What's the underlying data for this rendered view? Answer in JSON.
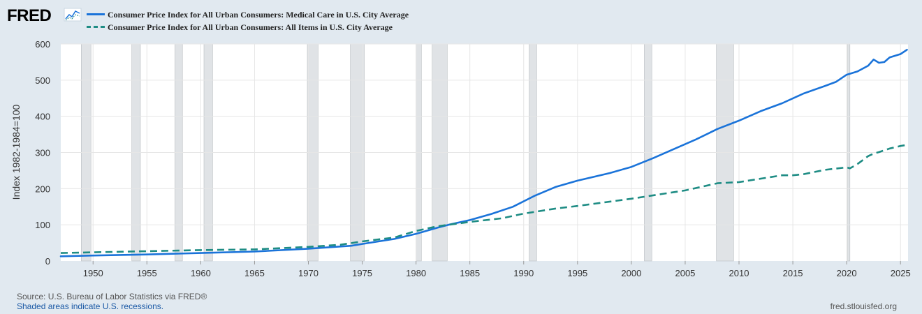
{
  "header": {
    "logo_text": "FRED",
    "logo_icon": "line-chart-icon"
  },
  "footer": {
    "source": "Source: U.S. Bureau of Labor Statistics via FRED®",
    "recession_note": "Shaded areas indicate U.S. recessions.",
    "site": "fred.stlouisfed.org"
  },
  "colors": {
    "background": "#e1e9f0",
    "plot_background": "#ffffff",
    "medical": "#1a73d9",
    "all_items": "#1e8c84",
    "recession": "#e0e3e6",
    "grid": "#e6e6e6"
  },
  "chart_data": {
    "type": "line",
    "title": "",
    "xlabel": "",
    "ylabel": "Index 1982-1984=100",
    "xlim": [
      1947.0,
      2025.7
    ],
    "ylim": [
      0,
      600
    ],
    "x_ticks": [
      1950,
      1955,
      1960,
      1965,
      1970,
      1975,
      1980,
      1985,
      1990,
      1995,
      2000,
      2005,
      2010,
      2015,
      2020,
      2025
    ],
    "y_ticks": [
      0,
      100,
      200,
      300,
      400,
      500,
      600
    ],
    "grid": true,
    "legend": "top-left",
    "recessions": [
      [
        1948.9,
        1949.8
      ],
      [
        1953.6,
        1954.4
      ],
      [
        1957.6,
        1958.3
      ],
      [
        1960.3,
        1961.1
      ],
      [
        1969.9,
        1970.9
      ],
      [
        1973.9,
        1975.2
      ],
      [
        1980.0,
        1980.5
      ],
      [
        1981.5,
        1982.9
      ],
      [
        1990.5,
        1991.2
      ],
      [
        2001.2,
        2001.9
      ],
      [
        2007.9,
        2009.5
      ],
      [
        2020.1,
        2020.3
      ]
    ],
    "series": [
      {
        "name": "Consumer Price Index for All Urban Consumers: Medical Care in U.S. City Average",
        "style": "solid",
        "x": [
          1947,
          1950,
          1955,
          1960,
          1965,
          1970,
          1974,
          1975,
          1978,
          1980,
          1982,
          1983,
          1985,
          1987,
          1989,
          1991,
          1993,
          1995,
          1998,
          2000,
          2002,
          2004,
          2006,
          2008,
          2010,
          2012,
          2014,
          2016,
          2018,
          2019,
          2020,
          2021,
          2022,
          2022.5,
          2023,
          2023.5,
          2024,
          2025,
          2025.6
        ],
        "values": [
          13,
          15,
          18,
          22,
          26,
          34,
          42,
          47,
          61,
          75,
          92,
          100,
          113,
          130,
          150,
          180,
          205,
          222,
          243,
          260,
          284,
          310,
          336,
          365,
          388,
          414,
          436,
          463,
          484,
          495,
          515,
          524,
          540,
          557,
          548,
          550,
          563,
          572,
          584
        ]
      },
      {
        "name": "Consumer Price Index for All Urban Consumers: All Items in U.S. City Average",
        "style": "dashed",
        "x": [
          1947,
          1950,
          1955,
          1960,
          1965,
          1970,
          1973,
          1975,
          1978,
          1980,
          1982,
          1983,
          1985,
          1988,
          1990,
          1993,
          1995,
          2000,
          2005,
          2008,
          2010,
          2014,
          2015,
          2016,
          2018,
          2020,
          2020.3,
          2021,
          2022,
          2022.5,
          2023,
          2024,
          2025,
          2025.6
        ],
        "values": [
          22,
          24,
          27,
          30,
          32,
          39,
          45,
          54,
          65,
          83,
          96,
          100,
          108,
          118,
          131,
          145,
          152,
          172,
          195,
          215,
          218,
          237,
          237,
          240,
          252,
          259,
          256,
          268,
          290,
          297,
          301,
          311,
          318,
          321
        ]
      }
    ]
  }
}
